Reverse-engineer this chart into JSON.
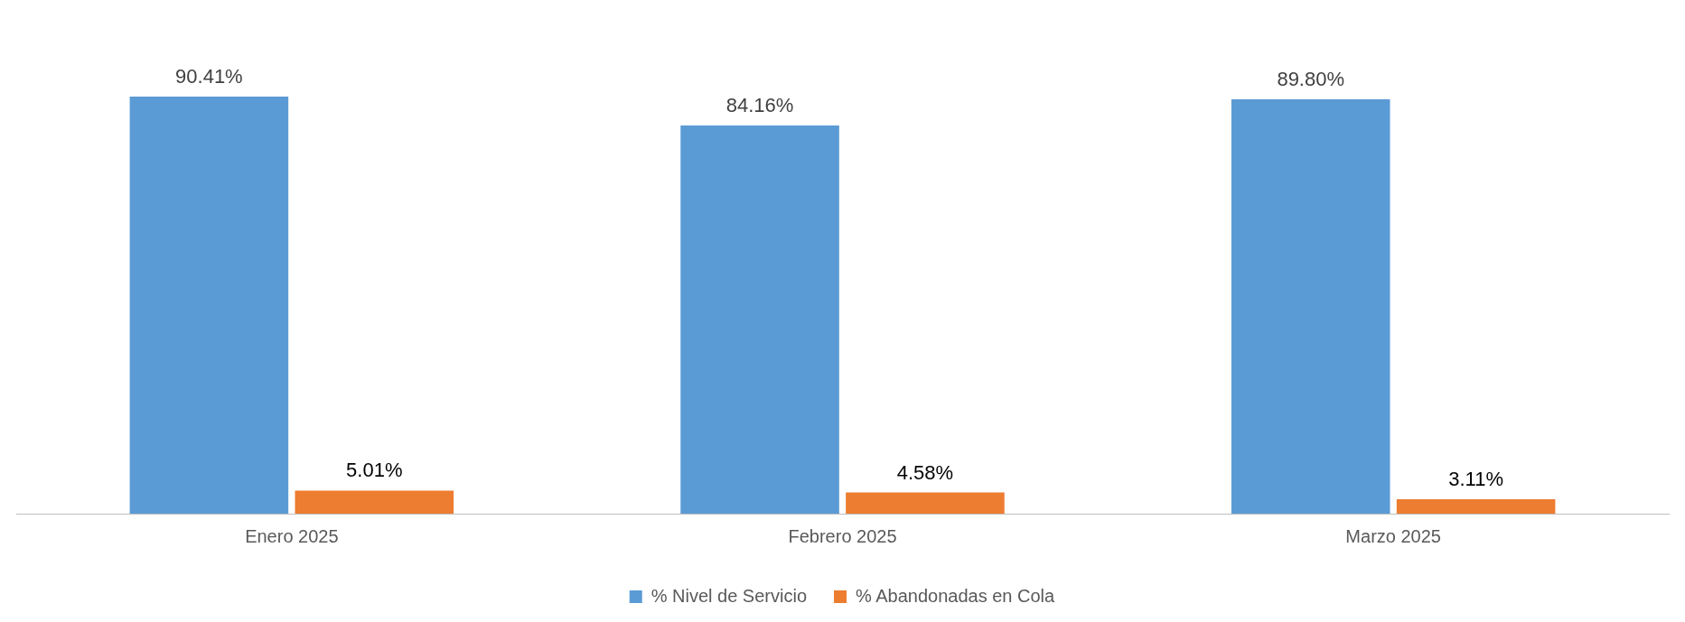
{
  "chart_data": {
    "type": "bar",
    "categories": [
      "Enero 2025",
      "Febrero 2025",
      "Marzo 2025"
    ],
    "series": [
      {
        "name": "% Nivel de Servicio",
        "color": "#5b9bd5",
        "values": [
          90.41,
          84.16,
          89.8
        ],
        "value_labels": [
          "90.41%",
          "84.16%",
          "89.80%"
        ]
      },
      {
        "name": "% Abandonadas en Cola",
        "color": "#ed7d31",
        "values": [
          5.01,
          4.58,
          3.11
        ],
        "value_labels": [
          "5.01%",
          "4.58%",
          "3.11%"
        ]
      }
    ],
    "legend": "bottom",
    "grid": false
  }
}
